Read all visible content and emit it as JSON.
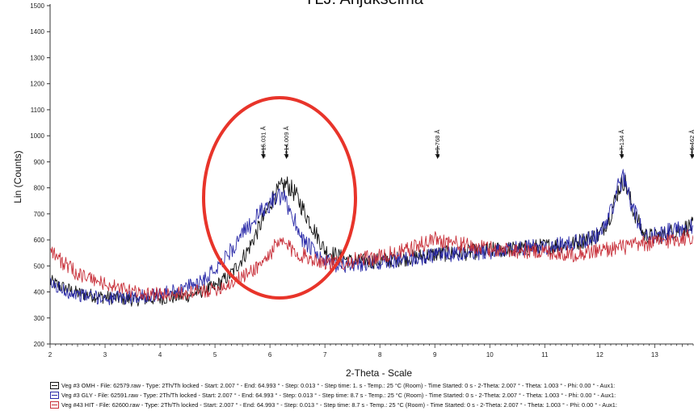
{
  "chart_data": {
    "type": "line",
    "title": "YLJ: Anjukselmä",
    "xlabel": "2-Theta - Scale",
    "ylabel": "Lin (Counts)",
    "xlim": [
      2,
      13.7
    ],
    "ylim": [
      200,
      1500
    ],
    "x_ticks": [
      2,
      3,
      4,
      5,
      6,
      7,
      8,
      9,
      10,
      11,
      12,
      13
    ],
    "y_ticks": [
      200,
      300,
      400,
      500,
      600,
      700,
      800,
      900,
      1000,
      1100,
      1200,
      1300,
      1400,
      1500
    ],
    "grid": false,
    "legend_position": "bottom",
    "series": [
      {
        "name": "Veg #3 OMH",
        "color": "#111111",
        "x": [
          2.0,
          2.2,
          2.5,
          3.0,
          3.5,
          4.0,
          4.5,
          5.0,
          5.3,
          5.6,
          5.9,
          6.05,
          6.2,
          6.3,
          6.45,
          6.6,
          6.8,
          7.0,
          7.5,
          8.0,
          8.5,
          9.0,
          9.5,
          10.0,
          10.5,
          11.0,
          11.5,
          12.0,
          12.2,
          12.35,
          12.45,
          12.6,
          12.8,
          13.0,
          13.3,
          13.7
        ],
        "y": [
          440,
          420,
          395,
          380,
          370,
          375,
          385,
          420,
          470,
          560,
          690,
          760,
          800,
          815,
          780,
          720,
          640,
          560,
          515,
          520,
          530,
          545,
          550,
          560,
          565,
          575,
          585,
          620,
          700,
          800,
          830,
          720,
          620,
          610,
          630,
          655
        ]
      },
      {
        "name": "Veg #3 GLY",
        "color": "#2a2aa8",
        "x": [
          2.0,
          2.2,
          2.5,
          3.0,
          3.5,
          4.0,
          4.5,
          4.8,
          5.0,
          5.3,
          5.6,
          5.9,
          6.1,
          6.25,
          6.4,
          6.6,
          6.9,
          7.2,
          7.5,
          8.0,
          8.5,
          9.0,
          9.5,
          10.0,
          10.5,
          11.0,
          11.5,
          12.0,
          12.2,
          12.35,
          12.45,
          12.6,
          12.8,
          13.0,
          13.3,
          13.7
        ],
        "y": [
          430,
          410,
          390,
          375,
          380,
          390,
          420,
          450,
          490,
          560,
          650,
          720,
          760,
          760,
          700,
          600,
          530,
          500,
          505,
          515,
          525,
          540,
          545,
          555,
          565,
          575,
          585,
          620,
          710,
          810,
          840,
          720,
          625,
          615,
          635,
          660
        ]
      },
      {
        "name": "Veg #43 HIT",
        "color": "#c8303a",
        "x": [
          2.0,
          2.1,
          2.3,
          2.5,
          3.0,
          3.5,
          4.0,
          4.5,
          5.0,
          5.3,
          5.6,
          5.9,
          6.1,
          6.25,
          6.4,
          6.6,
          6.9,
          7.2,
          7.5,
          8.0,
          8.5,
          8.8,
          9.0,
          9.3,
          9.6,
          10.0,
          10.5,
          11.0,
          11.5,
          12.0,
          12.5,
          13.0,
          13.3,
          13.7
        ],
        "y": [
          580,
          540,
          500,
          470,
          430,
          400,
          390,
          395,
          410,
          435,
          470,
          520,
          575,
          590,
          560,
          540,
          520,
          510,
          520,
          535,
          560,
          585,
          605,
          590,
          575,
          565,
          560,
          555,
          545,
          560,
          575,
          590,
          600,
          615
        ]
      }
    ],
    "annotations": [
      {
        "label": "d=15.031 Å",
        "x": 5.88
      },
      {
        "label": "d=14.009 Å",
        "x": 6.3
      },
      {
        "label": "d=9.768 Å",
        "x": 9.05
      },
      {
        "label": "d=7.134 Å",
        "x": 12.4
      },
      {
        "label": "d=6.462 Å",
        "x": 13.68
      }
    ],
    "highlight": {
      "shape": "ellipse",
      "color": "#e8342a"
    }
  },
  "legend": {
    "rows": [
      {
        "color": "#111111",
        "text": "Veg #3 OMH - File: 62579.raw - Type: 2Th/Th locked - Start: 2.007 ° - End: 64.993 ° - Step: 0.013 ° - Step time: 1. s - Temp.: 25 °C (Room) - Time Started: 0 s - 2-Theta: 2.007 ° - Theta: 1.003 ° - Phi: 0.00 ° - Aux1:"
      },
      {
        "color": "#2a2aa8",
        "text": "Veg #3 GLY - File: 62591.raw - Type: 2Th/Th locked - Start: 2.007 ° - End: 64.993 ° - Step: 0.013 ° - Step time: 8.7 s - Temp.: 25 °C (Room) - Time Started: 0 s - 2-Theta: 2.007 ° - Theta: 1.003 ° - Phi: 0.00 ° - Aux1:"
      },
      {
        "color": "#c8303a",
        "text": "Veg #43 HIT - File: 62600.raw - Type: 2Th/Th locked - Start: 2.007 ° - End: 64.993 ° - Step: 0.013 ° - Step time: 8.7 s - Temp.: 25 °C (Room) - Time Started: 0 s - 2-Theta: 2.007 ° - Theta: 1.003 ° - Phi: 0.00 ° - Aux1:"
      }
    ]
  }
}
